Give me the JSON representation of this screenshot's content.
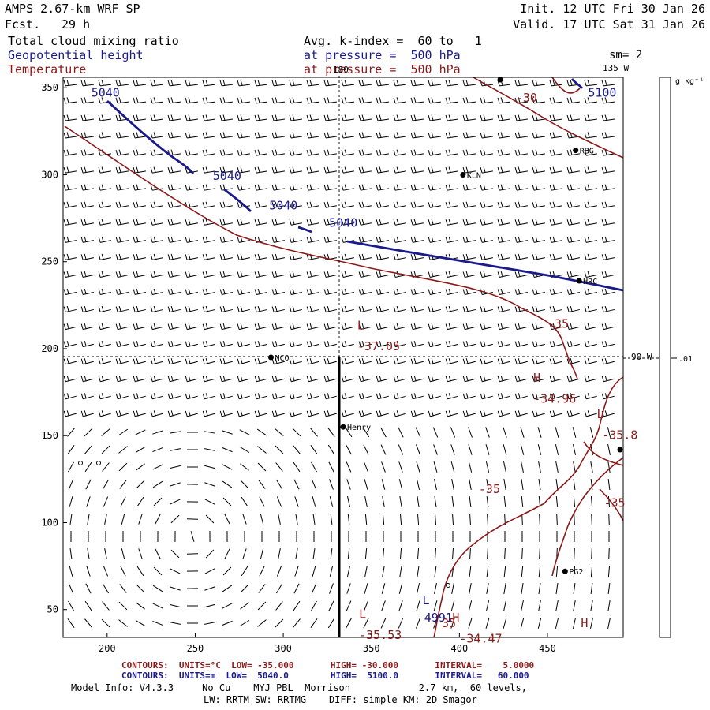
{
  "header": {
    "model": "AMPS 2.67-km WRF SP",
    "fcst_label": "Fcst.",
    "fcst_value": "29 h",
    "init": "Init. 12 UTC Fri 30 Jan 26",
    "valid": "Valid. 17 UTC Sat 31 Jan 26",
    "field1": "Total cloud mixing ratio",
    "field1_detail": "Avg. k-index =  60 to   1",
    "field2": "Geopotential height",
    "field2_detail": "at pressure =  500 hPa",
    "field3": "Temperature",
    "field3_detail": "at pressure =  500 hPa",
    "smoothing": "sm= 2"
  },
  "axes": {
    "x_ticks": [
      "200",
      "250",
      "300",
      "350",
      "400",
      "450"
    ],
    "y_ticks": [
      "350",
      "300",
      "250",
      "200",
      "150",
      "100",
      "50"
    ]
  },
  "map_labels": {
    "lon_180": "180",
    "lon_135w": "135 W",
    "lon_90w": "90 W"
  },
  "stations": [
    {
      "name": "RBG",
      "x": 466,
      "y": 314
    },
    {
      "name": "KLN",
      "x": 402,
      "y": 300
    },
    {
      "name": "HRC",
      "x": 468,
      "y": 239
    },
    {
      "name": "NCO",
      "x": 293,
      "y": 195
    },
    {
      "name": "Henry",
      "x": 334,
      "y": 155
    },
    {
      "name": "PG2",
      "x": 460,
      "y": 72
    }
  ],
  "contour_labels": {
    "height": [
      {
        "text": "5040",
        "x": 191,
        "y": 345
      },
      {
        "text": "5040",
        "x": 260,
        "y": 297
      },
      {
        "text": "5040",
        "x": 292,
        "y": 280
      },
      {
        "text": "5040",
        "x": 326,
        "y": 270
      },
      {
        "text": "5100",
        "x": 473,
        "y": 345
      },
      {
        "text": "L",
        "x": 379,
        "y": 53
      },
      {
        "text": "4991",
        "x": 380,
        "y": 43
      }
    ],
    "temperature": [
      {
        "text": "-30",
        "x": 432,
        "y": 342
      },
      {
        "text": "-35",
        "x": 450,
        "y": 212
      },
      {
        "text": "L",
        "x": 342,
        "y": 211
      },
      {
        "text": "-37.05",
        "x": 342,
        "y": 199
      },
      {
        "text": "H",
        "x": 442,
        "y": 181
      },
      {
        "text": "-34.96",
        "x": 442,
        "y": 169
      },
      {
        "text": "L",
        "x": 478,
        "y": 160
      },
      {
        "text": "-35.8",
        "x": 481,
        "y": 148
      },
      {
        "text": "-35",
        "x": 411,
        "y": 117
      },
      {
        "text": "-35",
        "x": 482,
        "y": 109
      },
      {
        "text": "L",
        "x": 343,
        "y": 45
      },
      {
        "text": "-35.53",
        "x": 343,
        "y": 33
      },
      {
        "text": "35",
        "x": 390,
        "y": 40
      },
      {
        "text": "H",
        "x": 396,
        "y": 43
      },
      {
        "text": "-34.47",
        "x": 400,
        "y": 31
      },
      {
        "text": "H",
        "x": 469,
        "y": 40
      }
    ]
  },
  "colorbar": {
    "units": "g kg⁻¹",
    "value": ".01"
  },
  "footer": {
    "contours1": "CONTOURS:  UNITS=°C  LOW= -35.000       HIGH= -30.000       INTERVAL=    5.0000",
    "contours2": "CONTOURS:  UNITS=m  LOW=  5040.0        HIGH=  5100.0       INTERVAL=   60.000",
    "model_info": "Model Info: V4.3.3     No Cu    MYJ PBL  Morrison            2.7 km,  60 levels,",
    "model_info2": "LW: RRTM SW: RRTMG    DIFF: simple KM: 2D Smagor"
  },
  "colors": {
    "height": "#1a1a8a",
    "temperature": "#8b1a1a"
  },
  "chart_data": {
    "type": "map",
    "title": "Total cloud mixing ratio; Geopotential height and Temperature at 500 hPa",
    "xlim": [
      175,
      493
    ],
    "ylim": [
      34,
      356
    ],
    "height_contours_m": [
      5040,
      5100
    ],
    "temperature_contours_C": [
      -35,
      -30
    ],
    "extrema": [
      {
        "kind": "L",
        "field": "temperature",
        "value": -37.05
      },
      {
        "kind": "H",
        "field": "temperature",
        "value": -34.96
      },
      {
        "kind": "L",
        "field": "temperature",
        "value": -35.8
      },
      {
        "kind": "L",
        "field": "temperature",
        "value": -35.53
      },
      {
        "kind": "H",
        "field": "temperature",
        "value": -34.47
      },
      {
        "kind": "L",
        "field": "height",
        "value": 4991
      }
    ]
  }
}
